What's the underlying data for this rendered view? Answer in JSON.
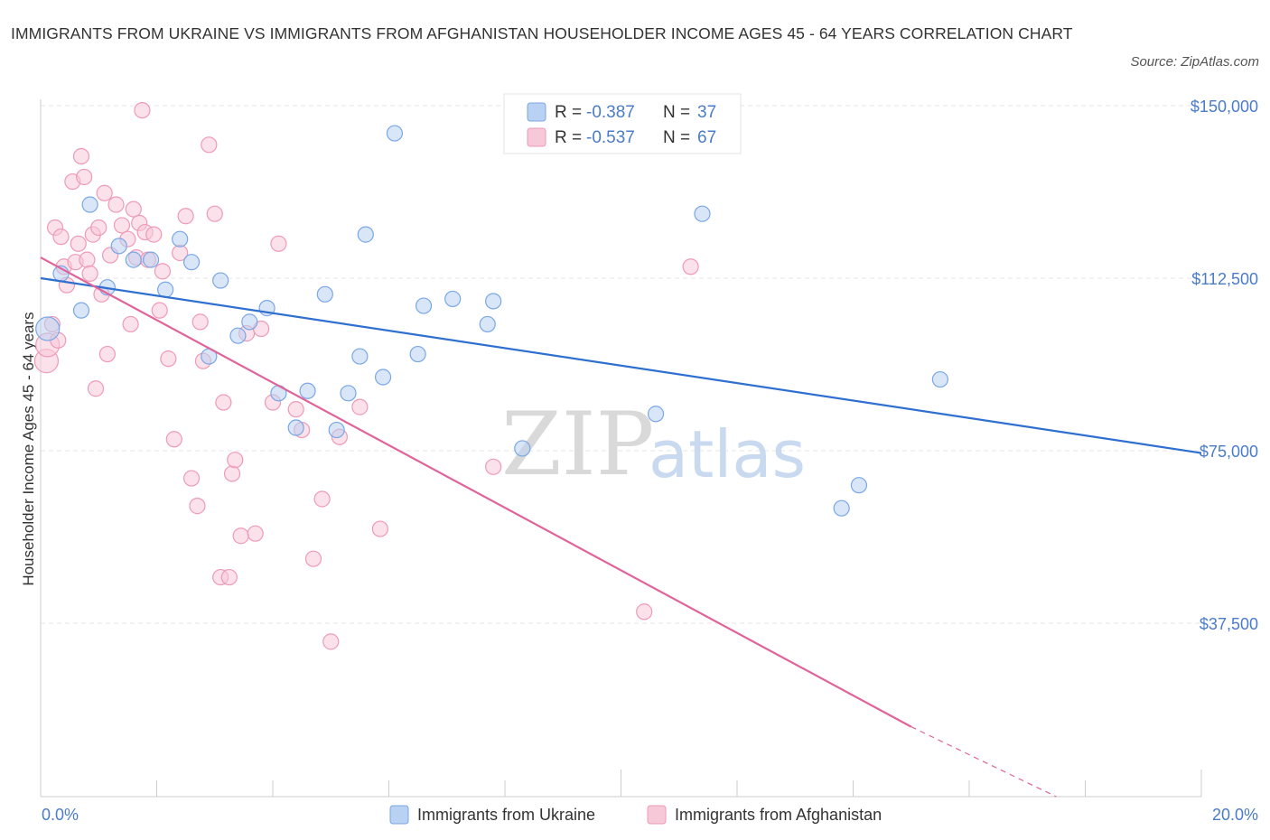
{
  "chart_data": {
    "type": "scatter",
    "title": "IMMIGRANTS FROM UKRAINE VS IMMIGRANTS FROM AFGHANISTAN HOUSEHOLDER INCOME AGES 45 - 64 YEARS CORRELATION CHART",
    "source": "Source: ZipAtlas.com",
    "ylabel": "Householder Income Ages 45 - 64 years",
    "xlim": [
      0,
      20
    ],
    "ylim": [
      0,
      152000
    ],
    "x_tick_labels": [
      "0.0%",
      "20.0%"
    ],
    "y_ticks": [
      {
        "value": 150000,
        "label": "$150,000"
      },
      {
        "value": 112500,
        "label": "$112,500"
      },
      {
        "value": 75000,
        "label": "$75,000"
      },
      {
        "value": 37500,
        "label": "$37,500"
      }
    ],
    "legend": {
      "r_label": "R =",
      "n_label": "N =",
      "entries": [
        {
          "r": "-0.387",
          "n": "37"
        },
        {
          "r": "-0.537",
          "n": "67"
        }
      ]
    },
    "series": [
      {
        "name": "Immigrants from Ukraine",
        "color": "#7aa7e6",
        "fill": "#b9d2f3",
        "line_color": "#2e6fd0",
        "trend": {
          "x0": 0,
          "y0": 112500,
          "x1": 20,
          "y1": 74500
        },
        "points": [
          [
            0.12,
            101500
          ],
          [
            0.35,
            113500
          ],
          [
            0.7,
            105500
          ],
          [
            0.85,
            128500
          ],
          [
            1.15,
            110500
          ],
          [
            1.35,
            119500
          ],
          [
            1.6,
            116500
          ],
          [
            1.9,
            116500
          ],
          [
            2.15,
            110000
          ],
          [
            2.4,
            121000
          ],
          [
            2.6,
            116000
          ],
          [
            2.9,
            95500
          ],
          [
            3.1,
            112000
          ],
          [
            3.4,
            100000
          ],
          [
            3.6,
            103000
          ],
          [
            3.9,
            106000
          ],
          [
            4.1,
            87500
          ],
          [
            4.4,
            80000
          ],
          [
            4.6,
            88000
          ],
          [
            4.9,
            109000
          ],
          [
            5.1,
            79500
          ],
          [
            5.3,
            87500
          ],
          [
            5.6,
            122000
          ],
          [
            5.9,
            91000
          ],
          [
            6.1,
            144000
          ],
          [
            6.5,
            96000
          ],
          [
            6.6,
            106500
          ],
          [
            7.1,
            108000
          ],
          [
            7.7,
            102500
          ],
          [
            7.8,
            107500
          ],
          [
            8.3,
            75500
          ],
          [
            10.6,
            83000
          ],
          [
            11.4,
            126500
          ],
          [
            13.8,
            62500
          ],
          [
            14.1,
            67500
          ],
          [
            15.5,
            90500
          ],
          [
            5.5,
            95500
          ]
        ]
      },
      {
        "name": "Immigrants from Afghanistan",
        "color": "#ef9ab6",
        "fill": "#f7c8d7",
        "line_color": "#e0649a",
        "trend": {
          "x0": 0,
          "y0": 117000,
          "x1": 15.0,
          "y1": 15000
        },
        "trend_dashed": {
          "x0": 15.0,
          "y0": 15000,
          "x1": 17.5,
          "y1": -1000
        },
        "points": [
          [
            0.1,
            94500
          ],
          [
            0.12,
            98000
          ],
          [
            0.2,
            102500
          ],
          [
            0.25,
            123500
          ],
          [
            0.3,
            99000
          ],
          [
            0.35,
            121500
          ],
          [
            0.4,
            115000
          ],
          [
            0.45,
            111000
          ],
          [
            0.55,
            133500
          ],
          [
            0.6,
            116000
          ],
          [
            0.65,
            120000
          ],
          [
            0.7,
            139000
          ],
          [
            0.75,
            134500
          ],
          [
            0.8,
            116500
          ],
          [
            0.85,
            113500
          ],
          [
            0.9,
            122000
          ],
          [
            0.95,
            88500
          ],
          [
            1.0,
            123500
          ],
          [
            1.05,
            109000
          ],
          [
            1.1,
            131000
          ],
          [
            1.15,
            96000
          ],
          [
            1.2,
            117500
          ],
          [
            1.3,
            128500
          ],
          [
            1.4,
            124000
          ],
          [
            1.5,
            121000
          ],
          [
            1.55,
            102500
          ],
          [
            1.6,
            127500
          ],
          [
            1.65,
            117000
          ],
          [
            1.7,
            124500
          ],
          [
            1.75,
            149000
          ],
          [
            1.8,
            122500
          ],
          [
            1.85,
            116500
          ],
          [
            1.95,
            122000
          ],
          [
            2.05,
            105500
          ],
          [
            2.1,
            114000
          ],
          [
            2.2,
            95000
          ],
          [
            2.3,
            77500
          ],
          [
            2.4,
            118000
          ],
          [
            2.5,
            126000
          ],
          [
            2.6,
            69000
          ],
          [
            2.7,
            63000
          ],
          [
            2.75,
            103000
          ],
          [
            2.8,
            94500
          ],
          [
            2.9,
            141500
          ],
          [
            3.0,
            126500
          ],
          [
            3.1,
            47500
          ],
          [
            3.15,
            85500
          ],
          [
            3.25,
            47500
          ],
          [
            3.3,
            70000
          ],
          [
            3.35,
            73000
          ],
          [
            3.45,
            56500
          ],
          [
            3.55,
            100500
          ],
          [
            3.7,
            57000
          ],
          [
            3.8,
            101500
          ],
          [
            4.0,
            85500
          ],
          [
            4.1,
            120000
          ],
          [
            4.4,
            84000
          ],
          [
            4.5,
            79500
          ],
          [
            4.7,
            51500
          ],
          [
            4.85,
            64500
          ],
          [
            5.0,
            33500
          ],
          [
            5.15,
            78000
          ],
          [
            5.5,
            84500
          ],
          [
            5.85,
            58000
          ],
          [
            7.8,
            71500
          ],
          [
            10.4,
            40000
          ],
          [
            11.2,
            115000
          ]
        ]
      }
    ]
  },
  "bottom_legend": [
    "Immigrants from Ukraine",
    "Immigrants from Afghanistan"
  ],
  "watermark": {
    "zip": "ZIP",
    "atlas": "atlas"
  }
}
